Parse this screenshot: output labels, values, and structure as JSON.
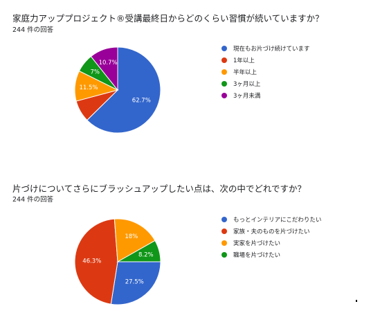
{
  "chart_data": [
    {
      "type": "pie",
      "title": "家庭力アッププロジェクト®受講最終日からどのくらい習慣が続いていますか？",
      "subtitle": "244 件の回答",
      "legend_position": "right",
      "start_angle": 90,
      "categories": [
        "現在もお片づけ続けています",
        "1年以上",
        "半年以上",
        "3ヶ月以上",
        "3ヶ月未満"
      ],
      "values": [
        62.7,
        8.2,
        11.5,
        7,
        10.7
      ],
      "labels": [
        "62.7%",
        "",
        "11.5%",
        "7%",
        "10.7%"
      ],
      "colors": [
        "#3366cc",
        "#dc3912",
        "#ff9900",
        "#109618",
        "#990099"
      ]
    },
    {
      "type": "pie",
      "title": "片づけについてさらにブラッシュアップしたい点は、次の中でどれですか？",
      "subtitle": "244 件の回答",
      "legend_position": "right",
      "start_angle": 0,
      "categories": [
        "もっとインテリアにこだわりたい",
        "家族・夫のものを片づけたい",
        "実家を片づけたい",
        "職場を片づけたい"
      ],
      "values": [
        27.5,
        46.3,
        18,
        8.2
      ],
      "labels": [
        "27.5%",
        "46.3%",
        "18%",
        "8.2%"
      ],
      "colors": [
        "#3366cc",
        "#dc3912",
        "#ff9900",
        "#109618"
      ]
    }
  ]
}
